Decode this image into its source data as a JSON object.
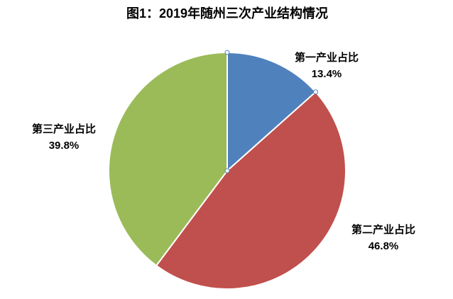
{
  "chart_data": {
    "type": "pie",
    "title": "图1：2019年随州三次产业结构情况",
    "categories": [
      "第一产业占比",
      "第二产业占比",
      "第三产业占比"
    ],
    "values": [
      13.4,
      46.8,
      39.8
    ],
    "value_labels": [
      "13.4%",
      "46.8%",
      "39.8%"
    ],
    "colors": [
      "#4f81bd",
      "#c0504d",
      "#9bbb59"
    ]
  }
}
